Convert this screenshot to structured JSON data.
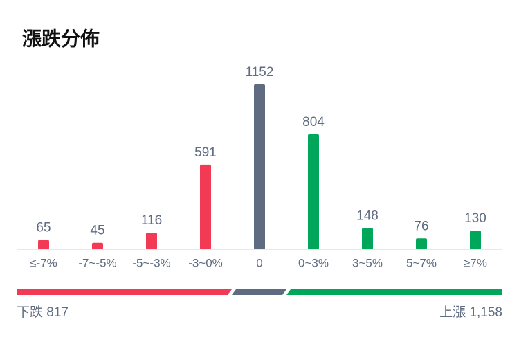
{
  "chart_data": {
    "type": "bar",
    "title": "漲跌分佈",
    "categories": [
      "≤-7%",
      "-7~-5%",
      "-5~-3%",
      "-3~0%",
      "0",
      "0~3%",
      "3~5%",
      "5~7%",
      "≥7%"
    ],
    "values": [
      65,
      45,
      116,
      591,
      1152,
      804,
      148,
      76,
      130
    ],
    "colors": [
      "#f23a55",
      "#f23a55",
      "#f23a55",
      "#f23a55",
      "#5f6b80",
      "#00a65a",
      "#00a65a",
      "#00a65a",
      "#00a65a"
    ],
    "down_summary": "下跌 817",
    "up_summary": "上漲 1,158"
  }
}
